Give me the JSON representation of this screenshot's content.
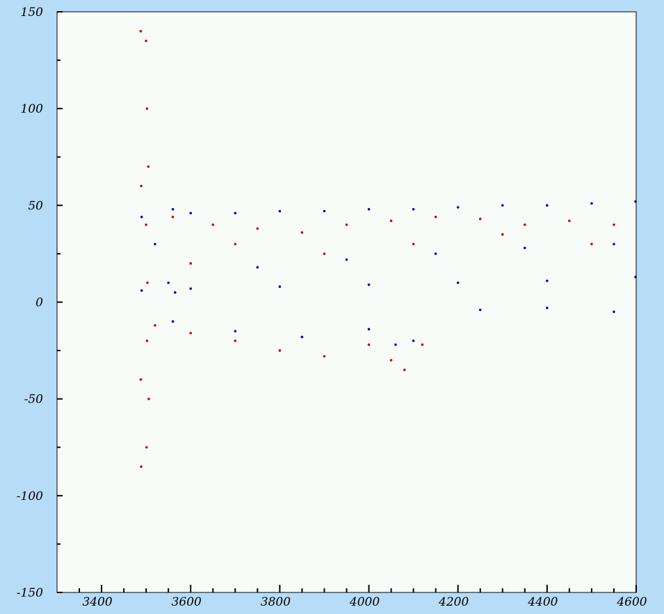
{
  "chart_data": {
    "type": "scatter",
    "title": "",
    "xlabel": "",
    "ylabel": "",
    "xlim": [
      3300,
      4600
    ],
    "ylim": [
      -150,
      150
    ],
    "x_ticks": [
      3400,
      3600,
      3800,
      4000,
      4200,
      4400,
      4600
    ],
    "y_ticks": [
      150,
      100,
      50,
      0,
      -50,
      -100,
      -150
    ],
    "x_tick_labels": [
      "3400",
      "3600",
      "3800",
      "4000",
      "4200",
      "4400",
      "4600"
    ],
    "y_tick_labels": [
      "150",
      "100",
      "50",
      "0",
      "-50",
      "-100",
      "-150"
    ],
    "grid": false,
    "colors": {
      "series_a": "#cc0000",
      "series_b": "#0000cc",
      "plot_background": "#f8fcf8",
      "page_background": "#b7dcf8"
    },
    "series": [
      {
        "color": "#cc0000",
        "values": [
          [
            3488,
            140
          ],
          [
            3489,
            60
          ],
          [
            3488,
            -40
          ],
          [
            3489,
            -85
          ],
          [
            3500,
            135
          ],
          [
            3502,
            100
          ],
          [
            3505,
            70
          ],
          [
            3500,
            40
          ],
          [
            3503,
            10
          ],
          [
            3502,
            -20
          ],
          [
            3506,
            -50
          ],
          [
            3501,
            -75
          ],
          [
            3560,
            44
          ],
          [
            3650,
            40
          ],
          [
            3750,
            38
          ],
          [
            3850,
            36
          ],
          [
            3950,
            40
          ],
          [
            4050,
            42
          ],
          [
            4150,
            44
          ],
          [
            4250,
            43
          ],
          [
            4350,
            40
          ],
          [
            4450,
            42
          ],
          [
            4550,
            40
          ],
          [
            3600,
            20
          ],
          [
            3700,
            30
          ],
          [
            3900,
            25
          ],
          [
            4100,
            30
          ],
          [
            4300,
            35
          ],
          [
            4500,
            30
          ],
          [
            3520,
            -12
          ],
          [
            3600,
            -16
          ],
          [
            3700,
            -20
          ],
          [
            3800,
            -25
          ],
          [
            3900,
            -28
          ],
          [
            4000,
            -22
          ],
          [
            4050,
            -30
          ],
          [
            4080,
            -35
          ],
          [
            4120,
            -22
          ]
        ]
      },
      {
        "color": "#0000cc",
        "values": [
          [
            3490,
            44
          ],
          [
            3490,
            6
          ],
          [
            3520,
            30
          ],
          [
            3550,
            10
          ],
          [
            3560,
            48
          ],
          [
            3565,
            5
          ],
          [
            3600,
            46
          ],
          [
            3700,
            46
          ],
          [
            3800,
            47
          ],
          [
            3900,
            47
          ],
          [
            4000,
            48
          ],
          [
            4100,
            48
          ],
          [
            4200,
            49
          ],
          [
            4300,
            50
          ],
          [
            4400,
            50
          ],
          [
            4500,
            51
          ],
          [
            4600,
            52
          ],
          [
            3600,
            7
          ],
          [
            3800,
            8
          ],
          [
            4000,
            9
          ],
          [
            4200,
            10
          ],
          [
            4400,
            11
          ],
          [
            4600,
            13
          ],
          [
            3750,
            18
          ],
          [
            3950,
            22
          ],
          [
            4150,
            25
          ],
          [
            4350,
            28
          ],
          [
            4550,
            30
          ],
          [
            3560,
            -10
          ],
          [
            3700,
            -15
          ],
          [
            3850,
            -18
          ],
          [
            4000,
            -14
          ],
          [
            4060,
            -22
          ],
          [
            4100,
            -20
          ],
          [
            4250,
            -4
          ],
          [
            4400,
            -3
          ],
          [
            4550,
            -5
          ]
        ]
      }
    ]
  }
}
